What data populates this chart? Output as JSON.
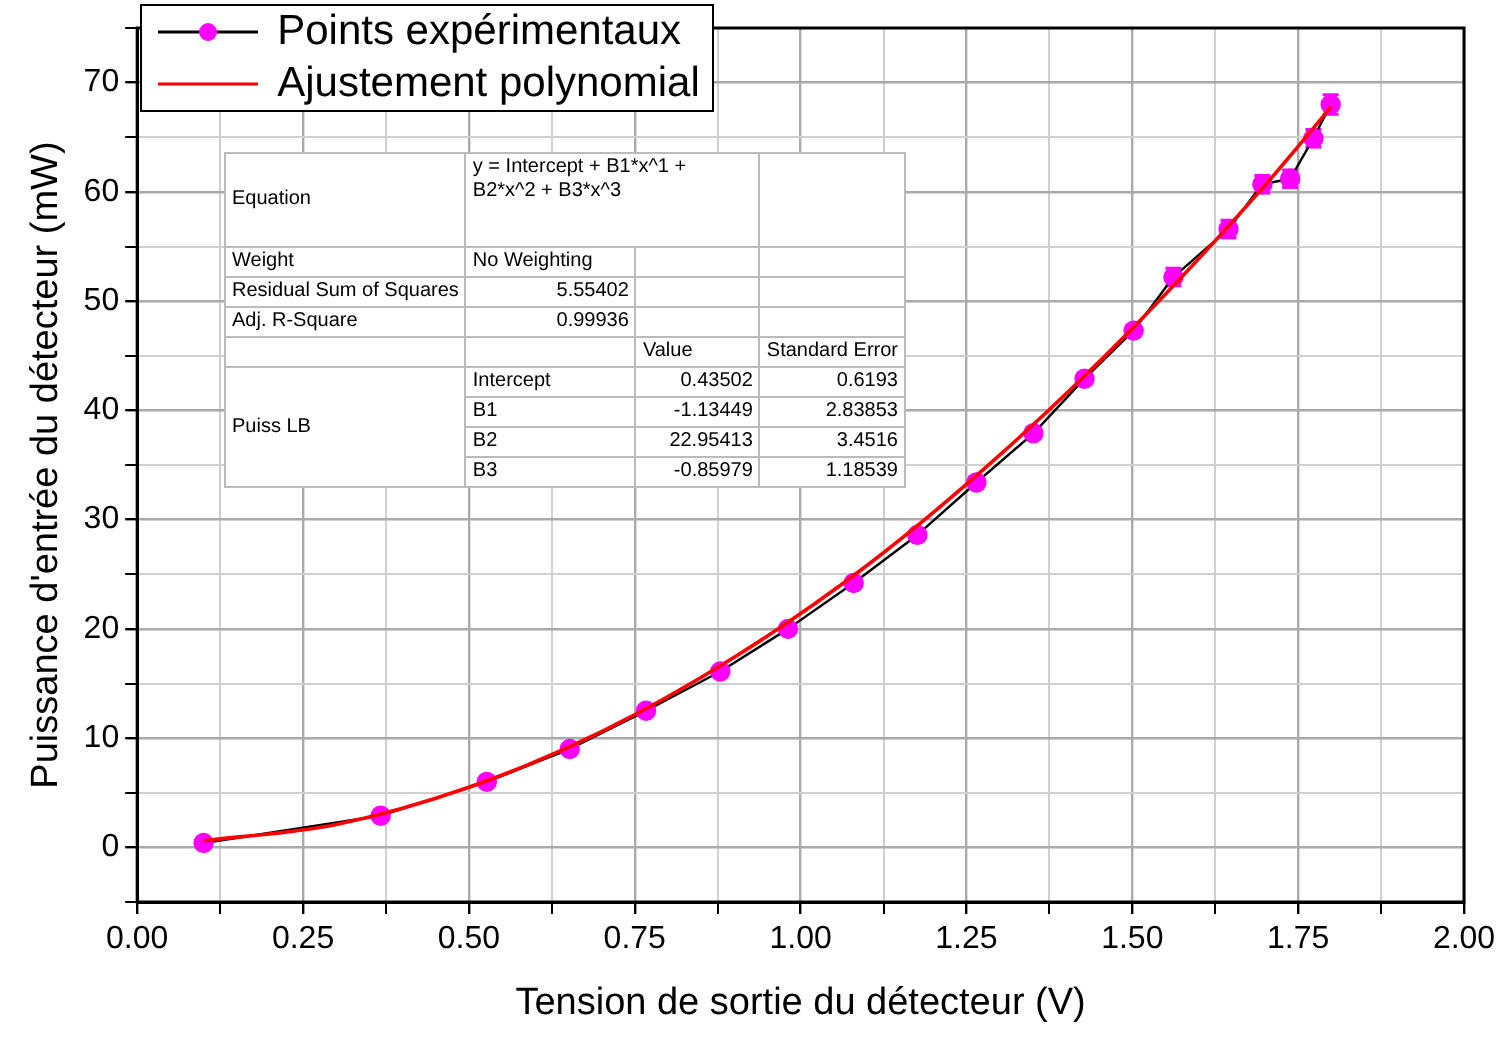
{
  "chart_data": {
    "type": "line",
    "xlabel": "Tension de sortie du détecteur (V)",
    "ylabel": "Puissance d'entrée du détecteur (mW)",
    "xlim": [
      0,
      2
    ],
    "ylim": [
      -5,
      75
    ],
    "xticks": [
      {
        "value": 0,
        "label": "0.00"
      },
      {
        "value": 0.125,
        "label": null
      },
      {
        "value": 0.25,
        "label": "0.25"
      },
      {
        "value": 0.375,
        "label": null
      },
      {
        "value": 0.5,
        "label": "0.50"
      },
      {
        "value": 0.625,
        "label": null
      },
      {
        "value": 0.75,
        "label": "0.75"
      },
      {
        "value": 0.875,
        "label": null
      },
      {
        "value": 1,
        "label": "1.00"
      },
      {
        "value": 1.125,
        "label": null
      },
      {
        "value": 1.25,
        "label": "1.25"
      },
      {
        "value": 1.375,
        "label": null
      },
      {
        "value": 1.5,
        "label": "1.50"
      },
      {
        "value": 1.625,
        "label": null
      },
      {
        "value": 1.75,
        "label": "1.75"
      },
      {
        "value": 1.875,
        "label": null
      },
      {
        "value": 2,
        "label": "2.00"
      }
    ],
    "yticks": [
      {
        "value": -5,
        "label": null
      },
      0,
      {
        "value": 5,
        "label": null
      },
      10,
      {
        "value": 15,
        "label": null
      },
      20,
      {
        "value": 25,
        "label": null
      },
      30,
      {
        "value": 35,
        "label": null
      },
      40,
      {
        "value": 45,
        "label": null
      },
      50,
      {
        "value": 55,
        "label": null
      },
      60,
      {
        "value": 65,
        "label": null
      },
      70,
      {
        "value": 75,
        "label": null
      }
    ],
    "grid": true,
    "legend": "top left",
    "series": [
      {
        "name": "Points expérimentaux",
        "marker": "circle",
        "color": "#000000",
        "colors": [
          "#ff00ff",
          "#ff00ff",
          "#ff00ff",
          "#ff00ff",
          "#ff00ff",
          "#ff00ff",
          "#ff00ff",
          "#ff00ff",
          "#ff00ff",
          "#ff00ff",
          "#ff00ff",
          "#ff00ff",
          "#ff00ff",
          "#ff00ff",
          "#ff00ff",
          "#ff00ff",
          "#ff00ff",
          "#ff00ff",
          "#ff00ff"
        ],
        "x": [
          0.1,
          0.367,
          0.527,
          0.652,
          0.767,
          0.879,
          0.981,
          1.08,
          1.176,
          1.265,
          1.351,
          1.428,
          1.502,
          1.562,
          1.645,
          1.696,
          1.738,
          1.773,
          1.799
        ],
        "values": [
          0.4,
          2.9,
          6.0,
          9.0,
          12.5,
          16.1,
          20.0,
          24.2,
          28.6,
          33.4,
          37.9,
          42.9,
          47.3,
          52.2,
          56.6,
          60.7,
          61.2,
          64.9,
          68.0
        ],
        "errors": [
          null,
          null,
          null,
          null,
          null,
          null,
          null,
          null,
          null,
          0.5,
          0.5,
          0.5,
          0.5,
          0.8,
          0.8,
          0.8,
          0.8,
          0.8,
          0.9
        ]
      },
      {
        "name": "Ajustement polynomial",
        "marker": "none",
        "color": "#ff0000",
        "x": [
          0.1,
          0.3,
          0.5,
          0.7,
          0.9,
          1.1,
          1.3,
          1.5,
          1.7,
          1.8
        ],
        "values": [
          0.6,
          2.1,
          5.5,
          10.6,
          17.4,
          25.8,
          35.9,
          47.5,
          60.6,
          67.8
        ]
      }
    ],
    "annotations": [
      "Equation",
      "y = Intercept + B1*x^1 + B2*x^2 + B3*x^3",
      "Weight",
      "No Weighting",
      "Residual Sum of Squares",
      "5.55402",
      "Adj. R-Square",
      "0.99936",
      "Value",
      "Standard Error",
      "Puiss LB",
      "Intercept",
      "0.43502",
      "0.6193",
      "B1",
      "-1.13449",
      "2.83853",
      "B2",
      "22.95413",
      "3.4516",
      "B3",
      "-0.85979",
      "1.18539"
    ]
  }
}
